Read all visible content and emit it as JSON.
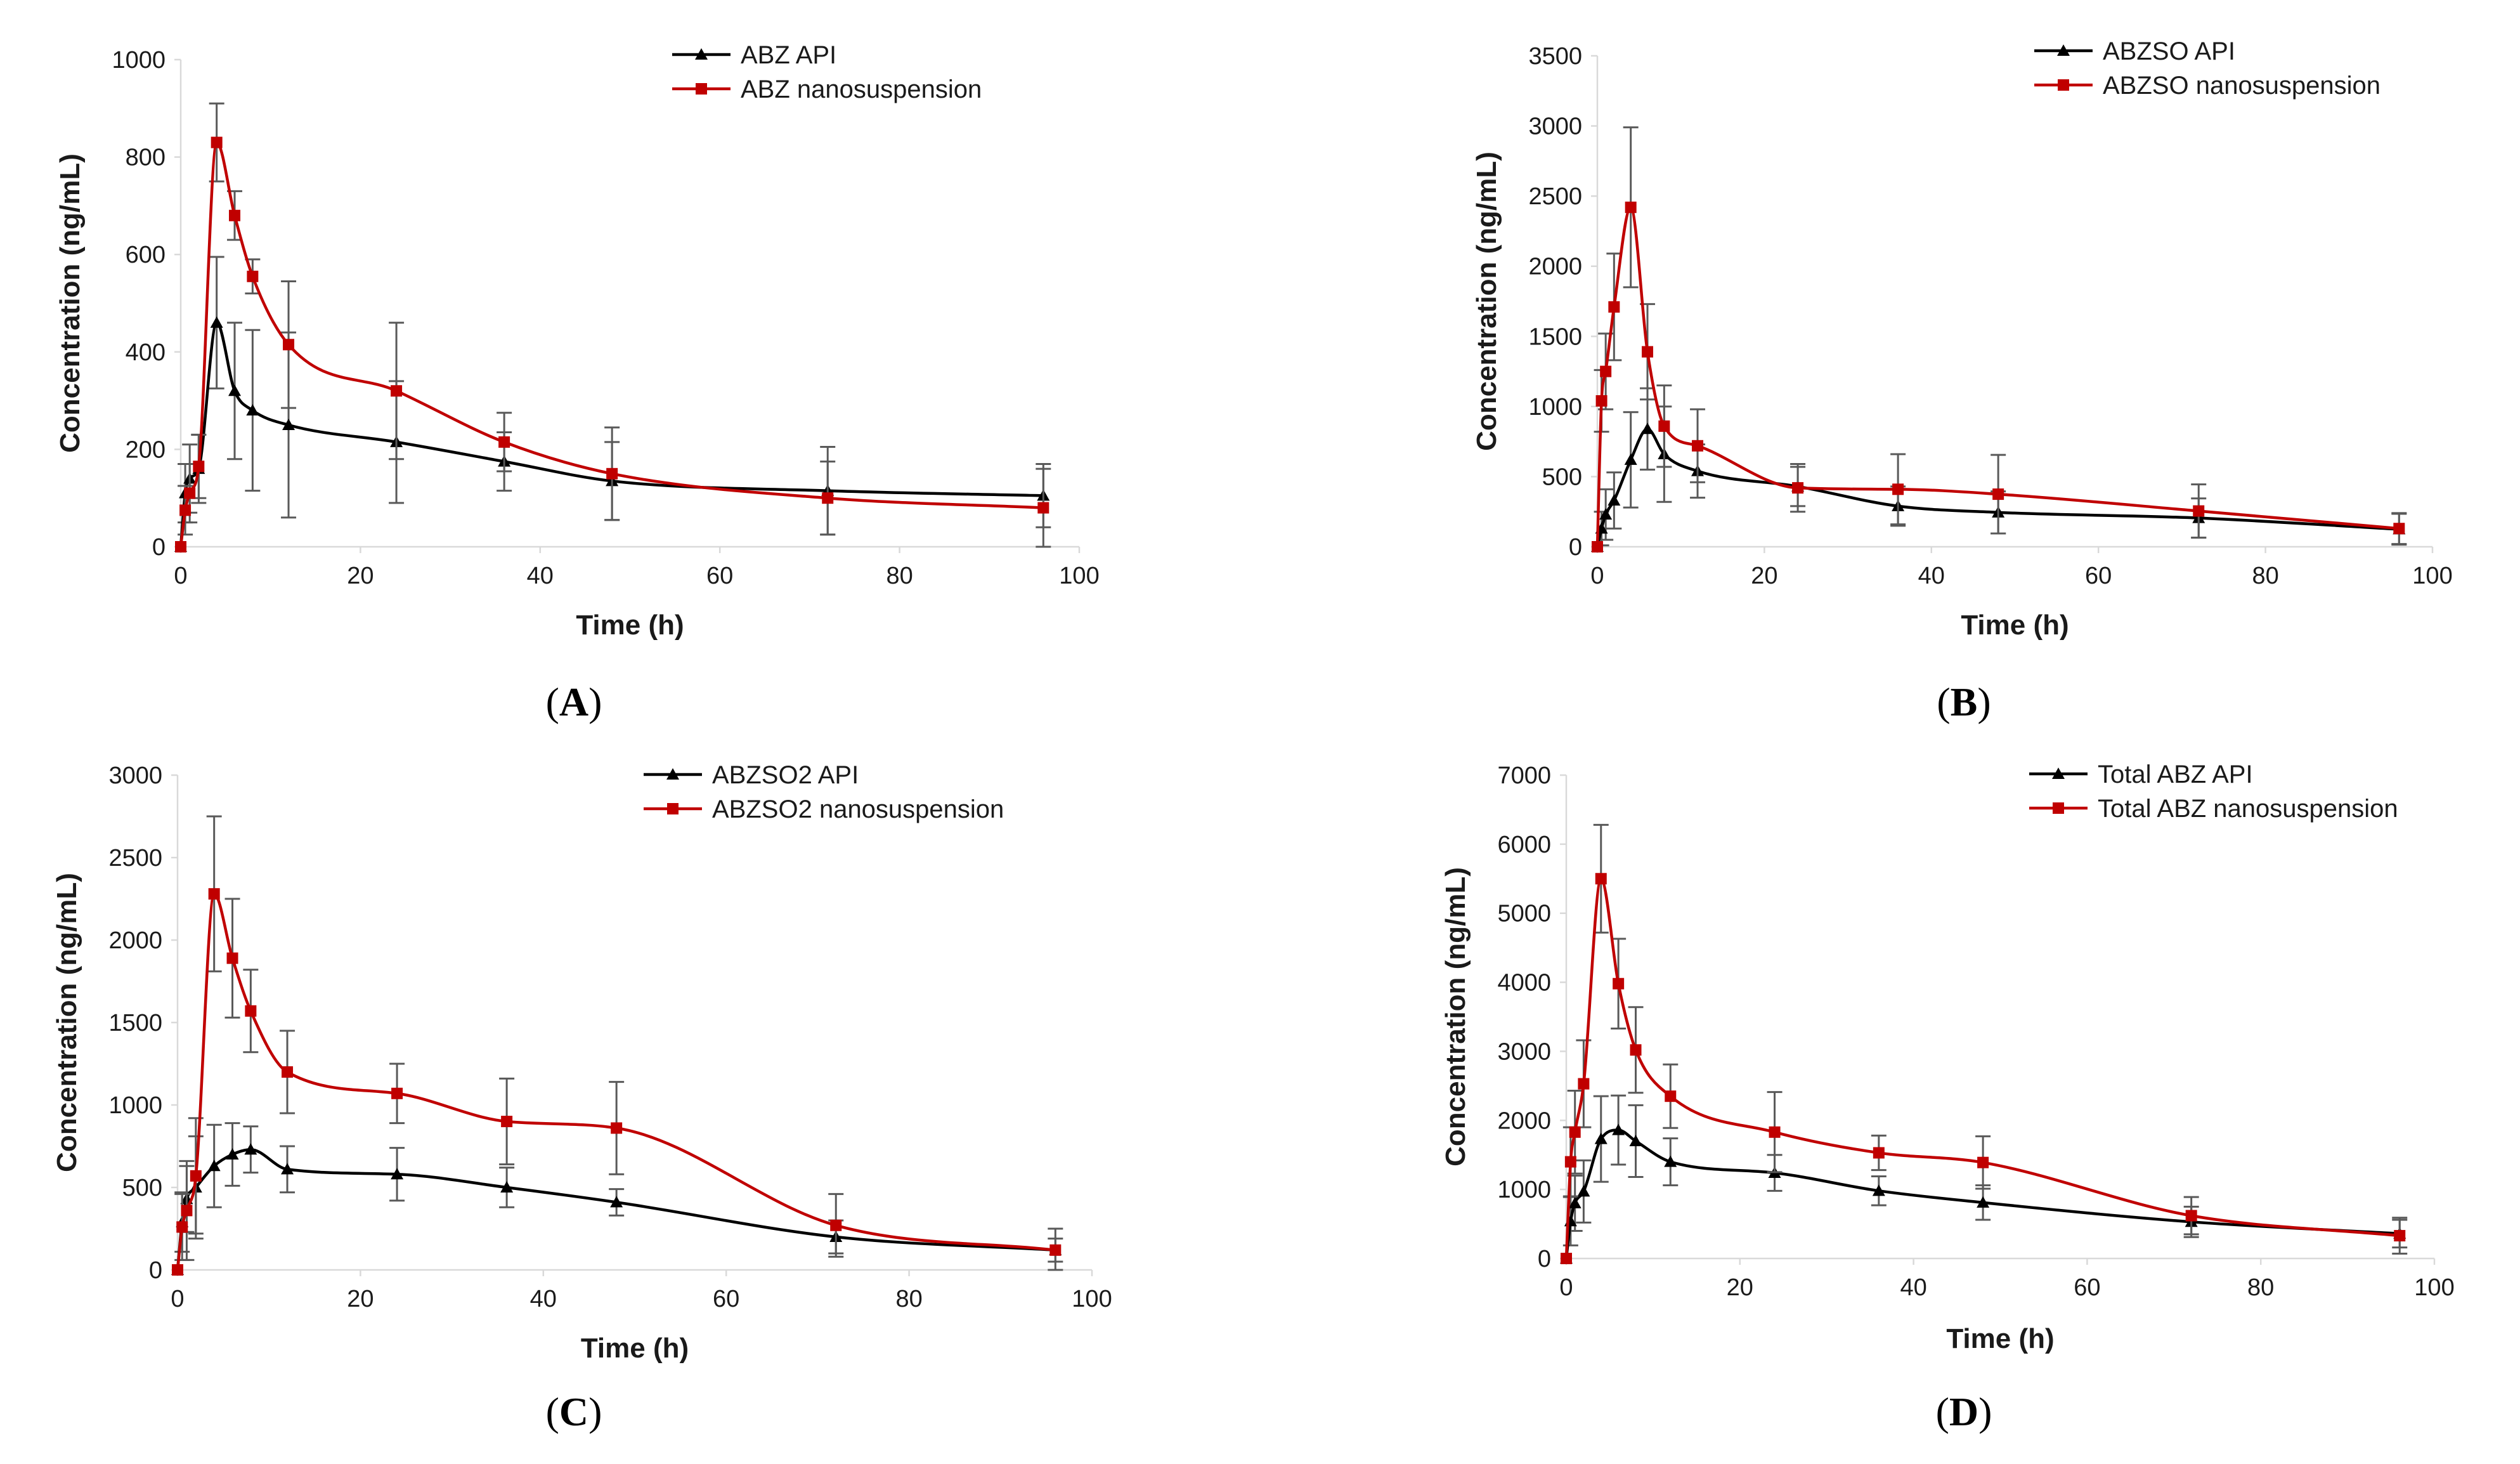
{
  "figure": {
    "colors": {
      "api": "#000000",
      "nano": "#c00000"
    }
  },
  "chart_data": [
    {
      "type": "line",
      "panel_label": "A",
      "xlabel": "Time (h)",
      "ylabel": "Concentration (ng/mL)",
      "xlim": [
        0,
        100
      ],
      "ylim": [
        0,
        1000
      ],
      "xticks": [
        0,
        20,
        40,
        60,
        80,
        100
      ],
      "yticks": [
        0,
        200,
        400,
        600,
        800,
        1000
      ],
      "legend_position": "top-right",
      "series": [
        {
          "name": "ABZ API",
          "marker": "triangle",
          "color": "#000000",
          "x": [
            0,
            0.5,
            1,
            2,
            4,
            6,
            8,
            12,
            24,
            36,
            48,
            72,
            96
          ],
          "y": [
            0,
            110,
            140,
            160,
            460,
            320,
            280,
            250,
            215,
            175,
            135,
            115,
            105
          ],
          "err": [
            0,
            60,
            70,
            70,
            135,
            140,
            165,
            190,
            125,
            60,
            80,
            90,
            65
          ]
        },
        {
          "name": "ABZ nanosuspension",
          "marker": "square",
          "color": "#c00000",
          "x": [
            0,
            0.5,
            1,
            2,
            4,
            6,
            8,
            12,
            24,
            36,
            48,
            72,
            96
          ],
          "y": [
            0,
            75,
            110,
            165,
            830,
            680,
            555,
            415,
            320,
            215,
            150,
            100,
            80
          ],
          "err": [
            0,
            50,
            60,
            65,
            80,
            50,
            35,
            130,
            140,
            60,
            95,
            75,
            80
          ]
        }
      ]
    },
    {
      "type": "line",
      "panel_label": "B",
      "xlabel": "Time (h)",
      "ylabel": "Concentration (ng/mL)",
      "xlim": [
        0,
        100
      ],
      "ylim": [
        0,
        3500
      ],
      "xticks": [
        0,
        20,
        40,
        60,
        80,
        100
      ],
      "yticks": [
        0,
        500,
        1000,
        1500,
        2000,
        2500,
        3000,
        3500
      ],
      "legend_position": "top-right",
      "series": [
        {
          "name": "ABZSO API",
          "marker": "triangle",
          "color": "#000000",
          "x": [
            0,
            0.5,
            1,
            2,
            4,
            6,
            8,
            12,
            24,
            36,
            48,
            72,
            96
          ],
          "y": [
            0,
            130,
            230,
            330,
            620,
            840,
            660,
            540,
            430,
            290,
            245,
            205,
            125
          ],
          "err": [
            0,
            120,
            180,
            200,
            340,
            290,
            340,
            190,
            140,
            140,
            150,
            140,
            110
          ]
        },
        {
          "name": "ABZSO nanosuspension",
          "marker": "square",
          "color": "#c00000",
          "x": [
            0,
            0.5,
            1,
            2,
            4,
            6,
            8,
            12,
            24,
            36,
            48,
            72,
            96
          ],
          "y": [
            0,
            1040,
            1250,
            1710,
            2420,
            1390,
            860,
            720,
            420,
            410,
            375,
            255,
            130
          ],
          "err": [
            0,
            220,
            270,
            380,
            570,
            340,
            290,
            260,
            170,
            250,
            280,
            190,
            110
          ]
        }
      ]
    },
    {
      "type": "line",
      "panel_label": "C",
      "xlabel": "Time (h)",
      "ylabel": "Concentration (ng/mL)",
      "xlim": [
        0,
        100
      ],
      "ylim": [
        0,
        3000
      ],
      "xticks": [
        0,
        20,
        40,
        60,
        80,
        100
      ],
      "yticks": [
        0,
        500,
        1000,
        1500,
        2000,
        2500,
        3000
      ],
      "legend_position": "top-right",
      "series": [
        {
          "name": "ABZSO2 API",
          "marker": "triangle",
          "color": "#000000",
          "x": [
            0,
            0.5,
            1,
            2,
            4,
            6,
            8,
            12,
            24,
            36,
            48,
            72,
            96
          ],
          "y": [
            0,
            290,
            430,
            500,
            630,
            700,
            730,
            610,
            580,
            500,
            410,
            200,
            120
          ],
          "err": [
            0,
            180,
            200,
            310,
            250,
            190,
            140,
            140,
            160,
            120,
            80,
            100,
            70
          ]
        },
        {
          "name": "ABZSO2 nanosuspension",
          "marker": "square",
          "color": "#c00000",
          "x": [
            0,
            0.5,
            1,
            2,
            4,
            6,
            8,
            12,
            24,
            36,
            48,
            72,
            96
          ],
          "y": [
            0,
            260,
            360,
            570,
            2280,
            1890,
            1570,
            1200,
            1070,
            900,
            860,
            270,
            120
          ],
          "err": [
            0,
            200,
            300,
            350,
            470,
            360,
            250,
            250,
            180,
            260,
            280,
            190,
            130
          ]
        }
      ]
    },
    {
      "type": "line",
      "panel_label": "D",
      "xlabel": "Time (h)",
      "ylabel": "Concentration (ng/mL)",
      "xlim": [
        0,
        100
      ],
      "ylim": [
        0,
        7000
      ],
      "xticks": [
        0,
        20,
        40,
        60,
        80,
        100
      ],
      "yticks": [
        0,
        1000,
        2000,
        3000,
        4000,
        5000,
        6000,
        7000
      ],
      "legend_position": "top-right",
      "series": [
        {
          "name": "Total ABZ API",
          "marker": "triangle",
          "color": "#000000",
          "x": [
            0,
            0.5,
            1,
            2,
            4,
            6,
            8,
            12,
            24,
            36,
            48,
            72,
            96
          ],
          "y": [
            0,
            540,
            800,
            970,
            1730,
            1860,
            1700,
            1400,
            1240,
            980,
            810,
            530,
            360
          ],
          "err": [
            0,
            350,
            400,
            450,
            620,
            500,
            520,
            340,
            260,
            210,
            250,
            220,
            200
          ]
        },
        {
          "name": "Total ABZ nanosuspension",
          "marker": "square",
          "color": "#c00000",
          "x": [
            0,
            0.5,
            1,
            2,
            4,
            6,
            8,
            12,
            24,
            36,
            48,
            72,
            96
          ],
          "y": [
            0,
            1400,
            1830,
            2530,
            5500,
            3980,
            3020,
            2350,
            1830,
            1530,
            1390,
            620,
            330
          ],
          "err": [
            0,
            500,
            600,
            630,
            780,
            650,
            620,
            460,
            580,
            250,
            380,
            270,
            260
          ]
        }
      ]
    }
  ]
}
